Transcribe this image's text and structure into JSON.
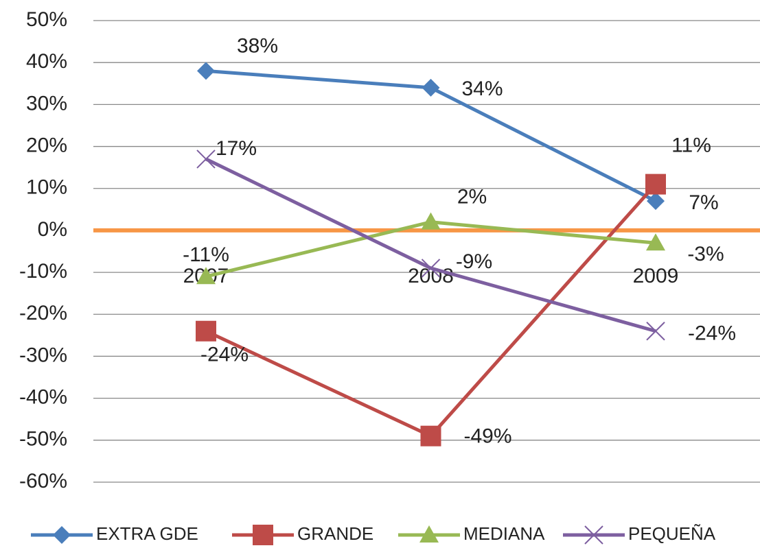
{
  "chart_data": {
    "type": "line",
    "categories": [
      "2007",
      "2008",
      "2009"
    ],
    "series": [
      {
        "name": "EXTRA GDE",
        "color": "#4a7ebb",
        "marker": "diamond",
        "values": [
          38,
          34,
          7
        ],
        "value_labels": [
          "38%",
          "34%",
          "7%"
        ]
      },
      {
        "name": "GRANDE",
        "color": "#be4b48",
        "marker": "square",
        "values": [
          -24,
          -49,
          11
        ],
        "value_labels": [
          "-24%",
          "-49%",
          "11%"
        ]
      },
      {
        "name": "MEDIANA",
        "color": "#98b954",
        "marker": "triangle",
        "values": [
          -11,
          2,
          -3
        ],
        "value_labels": [
          "-11%",
          "2%",
          "-3%"
        ]
      },
      {
        "name": "PEQUEÑA",
        "color": "#7d5fa0",
        "marker": "x",
        "values": [
          17,
          -9,
          -24
        ],
        "value_labels": [
          "17%",
          "-9%",
          "-24%"
        ]
      }
    ],
    "ylim": [
      -60,
      50
    ],
    "yticks": [
      {
        "value": -60,
        "label": "-60%"
      },
      {
        "value": -50,
        "label": "-50%"
      },
      {
        "value": -40,
        "label": "-40%"
      },
      {
        "value": -30,
        "label": "-30%"
      },
      {
        "value": -20,
        "label": "-20%"
      },
      {
        "value": -10,
        "label": "-10%"
      },
      {
        "value": 0,
        "label": "0%"
      },
      {
        "value": 10,
        "label": "10%"
      },
      {
        "value": 20,
        "label": "20%"
      },
      {
        "value": 30,
        "label": "30%"
      },
      {
        "value": 40,
        "label": "40%"
      },
      {
        "value": 50,
        "label": "50%"
      }
    ],
    "grid": true,
    "axis_color": "#f79646",
    "legend": "bottom"
  }
}
